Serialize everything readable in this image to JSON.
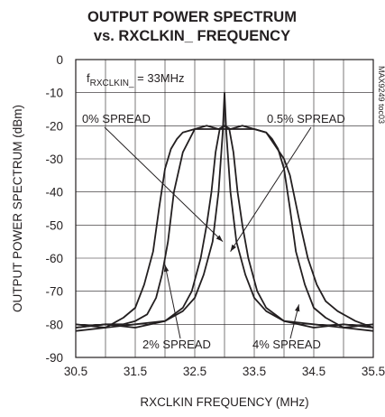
{
  "chart_data": {
    "type": "line",
    "title": [
      "OUTPUT POWER SPECTRUM",
      "vs. RXCLKIN_ FREQUENCY"
    ],
    "xlabel": "RXCLKIN FREQUENCY (MHz)",
    "ylabel": "OUTPUT POWER SPECTRUM (dBm)",
    "xlim": [
      30.5,
      35.5
    ],
    "ylim": [
      -90,
      0
    ],
    "xticks": [
      30.5,
      31.5,
      32.5,
      33.5,
      34.5,
      35.5
    ],
    "xtick_labels": [
      "30.5",
      "31.5",
      "32.5",
      "33.5",
      "34.5",
      "35.5"
    ],
    "yticks": [
      0,
      -10,
      -20,
      -30,
      -40,
      -50,
      -60,
      -70,
      -80,
      -90
    ],
    "ytick_labels": [
      "0",
      "-10",
      "-20",
      "-30",
      "-40",
      "-50",
      "-60",
      "-70",
      "-80",
      "-90"
    ],
    "grid": true,
    "annotation_condition": {
      "prefix": "f",
      "sub": "RXCLKIN_",
      "suffix": " = 33MHz"
    },
    "side_code": "MAX9249 toc03",
    "series": [
      {
        "label": "0% SPREAD",
        "x": [
          30.5,
          31.0,
          31.5,
          32.0,
          32.3,
          32.5,
          32.65,
          32.8,
          32.9,
          32.97,
          33.0,
          33.03,
          33.1,
          33.2,
          33.35,
          33.5,
          33.7,
          34.0,
          34.5,
          35.0,
          35.5
        ],
        "y": [
          -81,
          -80,
          -81,
          -79,
          -76,
          -72,
          -65,
          -55,
          -40,
          -22,
          -10,
          -22,
          -40,
          -55,
          -65,
          -72,
          -76,
          -79,
          -81,
          -80,
          -81
        ]
      },
      {
        "label": "0.5% SPREAD",
        "x": [
          30.5,
          31.0,
          31.5,
          32.0,
          32.3,
          32.45,
          32.6,
          32.7,
          32.78,
          32.85,
          32.92,
          33.0,
          33.08,
          33.15,
          33.22,
          33.3,
          33.4,
          33.55,
          33.7,
          34.0,
          34.5,
          35.0,
          35.5
        ],
        "y": [
          -80,
          -81,
          -80,
          -79,
          -75,
          -70,
          -60,
          -50,
          -40,
          -28,
          -21,
          -20,
          -21,
          -28,
          -40,
          -50,
          -60,
          -70,
          -75,
          -79,
          -80,
          -81,
          -80
        ]
      },
      {
        "label": "2% SPREAD",
        "x": [
          30.5,
          31.0,
          31.3,
          31.5,
          31.65,
          31.8,
          31.9,
          32.0,
          32.1,
          32.2,
          32.3,
          32.5,
          32.7,
          32.9,
          33.0,
          33.1,
          33.3,
          33.5,
          33.7,
          33.8,
          33.9,
          34.0,
          34.1,
          34.2,
          34.35,
          34.5,
          34.7,
          35.0,
          35.5
        ],
        "y": [
          -82,
          -81,
          -78,
          -75,
          -68,
          -58,
          -45,
          -33,
          -27,
          -24,
          -22,
          -21,
          -21,
          -21,
          -20,
          -21,
          -21,
          -21,
          -22,
          -24,
          -27,
          -33,
          -45,
          -58,
          -68,
          -75,
          -78,
          -81,
          -82
        ]
      },
      {
        "label": "4% SPREAD",
        "x": [
          30.5,
          31.0,
          31.3,
          31.5,
          31.7,
          31.85,
          31.95,
          32.05,
          32.15,
          32.3,
          32.5,
          32.7,
          32.9,
          33.0,
          33.1,
          33.3,
          33.5,
          33.7,
          33.85,
          34.0,
          34.1,
          34.25,
          34.4,
          34.55,
          34.7,
          34.9,
          35.2,
          35.5
        ],
        "y": [
          -81,
          -80,
          -80,
          -79,
          -77,
          -72,
          -65,
          -55,
          -40,
          -28,
          -21,
          -20,
          -21,
          -21,
          -21,
          -20,
          -21,
          -22,
          -26,
          -30,
          -35,
          -48,
          -60,
          -68,
          -73,
          -76,
          -79,
          -81
        ]
      }
    ],
    "annotations": [
      {
        "text": "0% SPREAD",
        "series": 0,
        "point": [
          32.97,
          -55
        ]
      },
      {
        "text": "0.5% SPREAD",
        "series": 1,
        "point": [
          33.1,
          -58
        ]
      },
      {
        "text": "2% SPREAD",
        "series": 2,
        "point": [
          32.0,
          -62
        ]
      },
      {
        "text": "4% SPREAD",
        "series": 3,
        "point": [
          34.25,
          -74
        ]
      }
    ]
  }
}
